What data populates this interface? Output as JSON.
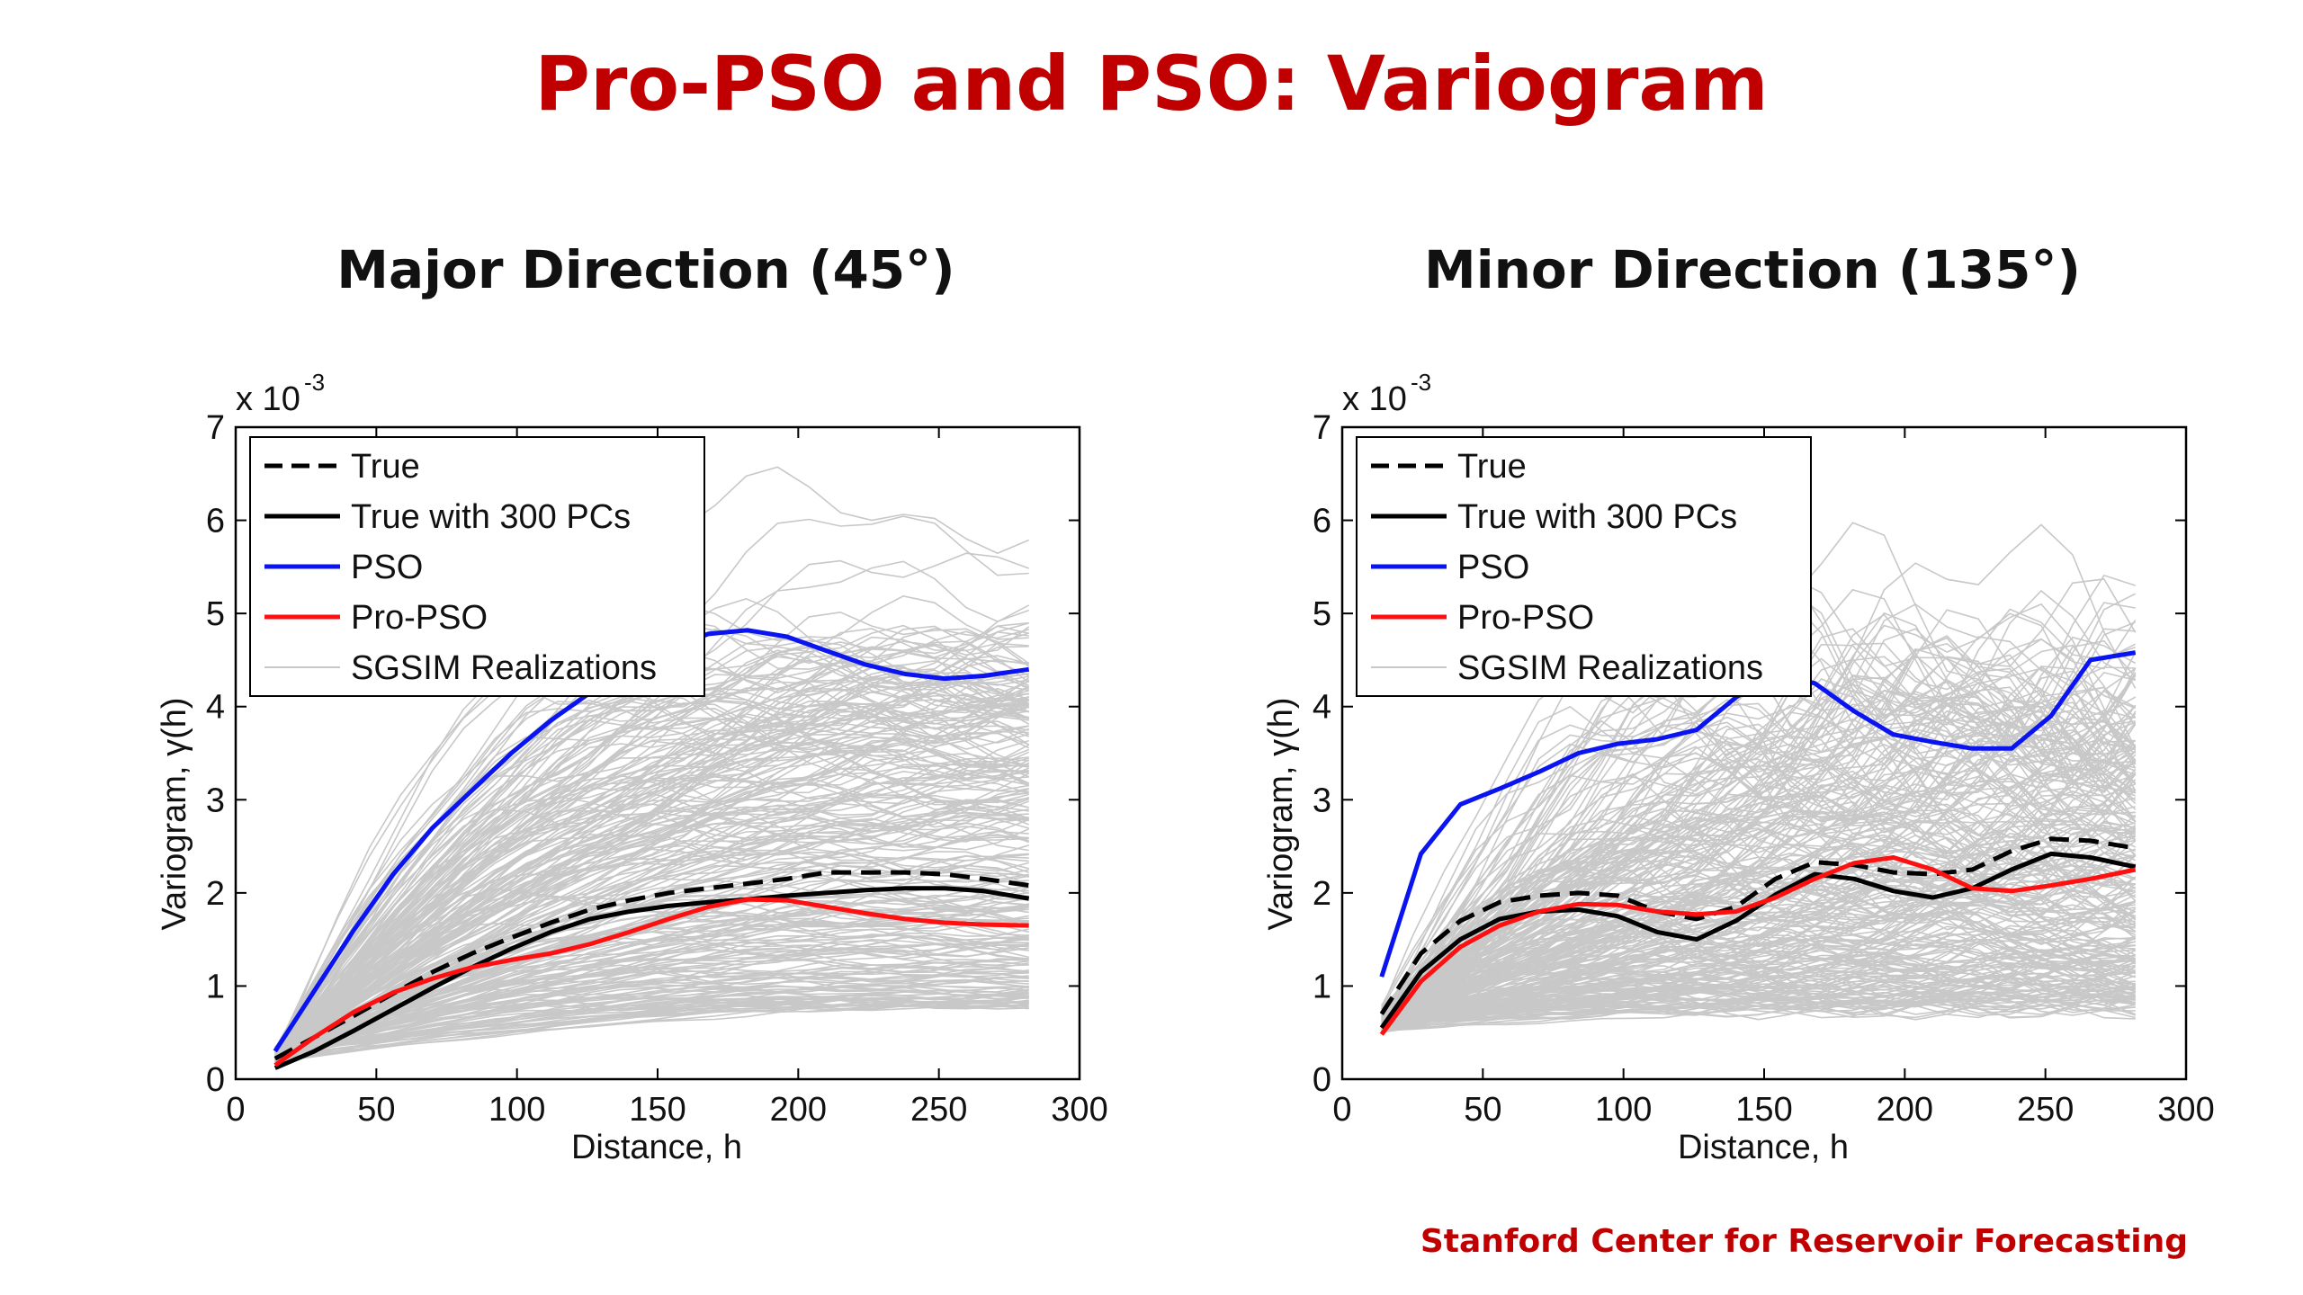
{
  "slide": {
    "title": "Pro-PSO and PSO: Variogram",
    "footer": "Stanford Center for Reservoir Forecasting"
  },
  "colors": {
    "title": "#c00000",
    "pso": "#0a14f0",
    "pro_pso": "#ff1010",
    "true": "#000000",
    "sgsim": "#c8c8c8"
  },
  "chart_data": [
    {
      "type": "line",
      "title": "Major Direction (45°)",
      "xlabel": "Distance, h",
      "ylabel": "Variogram, γ(h)",
      "y_multiplier": "x 10-3",
      "y_multiplier_base": "x 10",
      "y_multiplier_exp": "-3",
      "xlim": [
        0,
        300
      ],
      "ylim": [
        0,
        7
      ],
      "x_ticks": [
        "0",
        "50",
        "100",
        "150",
        "200",
        "250",
        "300"
      ],
      "y_ticks": [
        "0",
        "1",
        "2",
        "3",
        "4",
        "5",
        "6",
        "7"
      ],
      "grid": false,
      "legend_position": "top-left",
      "series": [
        {
          "name": "True",
          "style": "dashed",
          "color": "#000000",
          "x": [
            14,
            28,
            42,
            56,
            70,
            84,
            98,
            112,
            126,
            140,
            154,
            168,
            182,
            196,
            210,
            224,
            238,
            252,
            266,
            282
          ],
          "y": [
            0.22,
            0.45,
            0.68,
            0.92,
            1.15,
            1.35,
            1.52,
            1.68,
            1.82,
            1.92,
            2.0,
            2.05,
            2.1,
            2.15,
            2.22,
            2.22,
            2.22,
            2.2,
            2.15,
            2.08
          ]
        },
        {
          "name": "True with 300 PCs",
          "style": "solid",
          "color": "#000000",
          "x": [
            14,
            28,
            42,
            56,
            70,
            84,
            98,
            112,
            126,
            140,
            154,
            168,
            182,
            196,
            210,
            224,
            238,
            252,
            266,
            282
          ],
          "y": [
            0.12,
            0.3,
            0.52,
            0.75,
            0.98,
            1.2,
            1.4,
            1.58,
            1.72,
            1.8,
            1.86,
            1.9,
            1.93,
            1.97,
            2.0,
            2.03,
            2.05,
            2.05,
            2.02,
            1.94
          ]
        },
        {
          "name": "PSO",
          "style": "solid",
          "color": "#0a14f0",
          "x": [
            14,
            28,
            42,
            56,
            70,
            84,
            98,
            112,
            126,
            140,
            154,
            168,
            182,
            196,
            210,
            224,
            238,
            252,
            266,
            282
          ],
          "y": [
            0.3,
            0.95,
            1.6,
            2.2,
            2.7,
            3.1,
            3.5,
            3.85,
            4.15,
            4.4,
            4.62,
            4.78,
            4.82,
            4.75,
            4.6,
            4.45,
            4.35,
            4.3,
            4.33,
            4.4
          ]
        },
        {
          "name": "Pro-PSO",
          "style": "solid",
          "color": "#ff1010",
          "x": [
            14,
            28,
            42,
            56,
            70,
            84,
            98,
            112,
            126,
            140,
            154,
            168,
            182,
            196,
            210,
            224,
            238,
            252,
            266,
            282
          ],
          "y": [
            0.15,
            0.45,
            0.72,
            0.93,
            1.08,
            1.2,
            1.28,
            1.35,
            1.45,
            1.58,
            1.72,
            1.85,
            1.93,
            1.92,
            1.85,
            1.78,
            1.72,
            1.68,
            1.66,
            1.65
          ]
        },
        {
          "name": "SGSIM Realizations",
          "style": "solid",
          "color": "#c8c8c8",
          "kind": "ensemble",
          "x": [
            14,
            282
          ],
          "min_y": [
            0.18,
            0.8
          ],
          "max_y": [
            0.35,
            6.4
          ]
        }
      ]
    },
    {
      "type": "line",
      "title": "Minor Direction (135°)",
      "xlabel": "Distance, h",
      "ylabel": "Variogram, γ(h)",
      "y_multiplier": "x 10-3",
      "y_multiplier_base": "x 10",
      "y_multiplier_exp": "-3",
      "xlim": [
        0,
        300
      ],
      "ylim": [
        0,
        7
      ],
      "x_ticks": [
        "0",
        "50",
        "100",
        "150",
        "200",
        "250",
        "300"
      ],
      "y_ticks": [
        "0",
        "1",
        "2",
        "3",
        "4",
        "5",
        "6",
        "7"
      ],
      "grid": false,
      "legend_position": "top-left",
      "series": [
        {
          "name": "True",
          "style": "dashed",
          "color": "#000000",
          "x": [
            14,
            28,
            42,
            56,
            70,
            84,
            98,
            112,
            126,
            140,
            154,
            168,
            182,
            196,
            210,
            224,
            238,
            252,
            266,
            282
          ],
          "y": [
            0.7,
            1.35,
            1.7,
            1.9,
            1.97,
            2.0,
            1.97,
            1.8,
            1.72,
            1.85,
            2.15,
            2.33,
            2.3,
            2.22,
            2.2,
            2.25,
            2.45,
            2.58,
            2.56,
            2.48
          ]
        },
        {
          "name": "True with 300 PCs",
          "style": "solid",
          "color": "#000000",
          "x": [
            14,
            28,
            42,
            56,
            70,
            84,
            98,
            112,
            126,
            140,
            154,
            168,
            182,
            196,
            210,
            224,
            238,
            252,
            266,
            282
          ],
          "y": [
            0.55,
            1.15,
            1.5,
            1.72,
            1.8,
            1.82,
            1.75,
            1.58,
            1.5,
            1.7,
            1.98,
            2.2,
            2.15,
            2.02,
            1.95,
            2.05,
            2.25,
            2.42,
            2.38,
            2.28
          ]
        },
        {
          "name": "PSO",
          "style": "solid",
          "color": "#0a14f0",
          "x": [
            14,
            28,
            42,
            56,
            70,
            84,
            98,
            112,
            126,
            140,
            154,
            168,
            182,
            196,
            210,
            224,
            238,
            252,
            266,
            282
          ],
          "y": [
            1.1,
            2.42,
            2.95,
            3.12,
            3.3,
            3.5,
            3.6,
            3.65,
            3.75,
            4.1,
            4.35,
            4.25,
            3.95,
            3.7,
            3.62,
            3.55,
            3.55,
            3.9,
            4.5,
            4.58
          ]
        },
        {
          "name": "Pro-PSO",
          "style": "solid",
          "color": "#ff1010",
          "x": [
            14,
            28,
            42,
            56,
            70,
            84,
            98,
            112,
            126,
            140,
            154,
            168,
            182,
            196,
            210,
            224,
            238,
            252,
            266,
            282
          ],
          "y": [
            0.48,
            1.05,
            1.42,
            1.65,
            1.8,
            1.88,
            1.87,
            1.8,
            1.77,
            1.8,
            1.95,
            2.15,
            2.32,
            2.38,
            2.25,
            2.05,
            2.02,
            2.08,
            2.15,
            2.25
          ]
        },
        {
          "name": "SGSIM Realizations",
          "style": "solid",
          "color": "#c8c8c8",
          "kind": "ensemble",
          "x": [
            14,
            282
          ],
          "min_y": [
            0.5,
            0.8
          ],
          "max_y": [
            0.8,
            6.0
          ]
        }
      ]
    }
  ]
}
